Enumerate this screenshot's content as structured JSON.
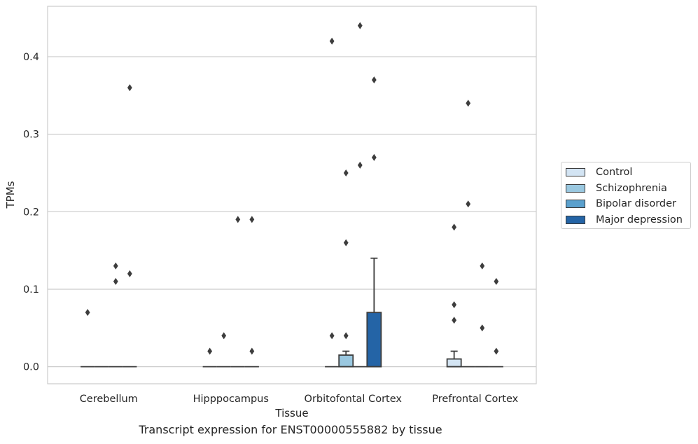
{
  "caption": "Transcript expression for ENST00000555882 by tissue",
  "chart_data": {
    "type": "box",
    "xlabel": "Tissue",
    "ylabel": "TPMs",
    "ylim": [
      -0.022,
      0.465
    ],
    "yticks": [
      0.0,
      0.1,
      0.2,
      0.3,
      0.4
    ],
    "ytick_labels": [
      "0.0",
      "0.1",
      "0.2",
      "0.3",
      "0.4"
    ],
    "grid": true,
    "legend_position": "right",
    "categories": [
      "Cerebellum",
      "Hipppocampus",
      "Orbitofontal Cortex",
      "Prefrontal Cortex"
    ],
    "series": [
      {
        "name": "Control",
        "color": "#d3e4f3",
        "boxes": [
          {
            "q1": 0,
            "median": 0,
            "q3": 0,
            "whislo": 0,
            "whishi": 0,
            "fliers": [
              0.07
            ]
          },
          {
            "q1": 0,
            "median": 0,
            "q3": 0,
            "whislo": 0,
            "whishi": 0,
            "fliers": [
              0.02
            ]
          },
          {
            "q1": 0,
            "median": 0,
            "q3": 0,
            "whislo": 0,
            "whishi": 0,
            "fliers": [
              0.42,
              0.04
            ]
          },
          {
            "q1": 0,
            "median": 0,
            "q3": 0.01,
            "whislo": 0,
            "whishi": 0.02,
            "fliers": [
              0.06,
              0.08,
              0.18
            ]
          }
        ]
      },
      {
        "name": "Schizophrenia",
        "color": "#9ac8e0",
        "boxes": [
          {
            "q1": 0,
            "median": 0,
            "q3": 0,
            "whislo": 0,
            "whishi": 0,
            "fliers": []
          },
          {
            "q1": 0,
            "median": 0,
            "q3": 0,
            "whislo": 0,
            "whishi": 0,
            "fliers": [
              0.04
            ]
          },
          {
            "q1": 0,
            "median": 0,
            "q3": 0.015,
            "whislo": 0,
            "whishi": 0.02,
            "fliers": [
              0.04,
              0.16,
              0.25
            ]
          },
          {
            "q1": 0,
            "median": 0,
            "q3": 0,
            "whislo": 0,
            "whishi": 0,
            "fliers": [
              0.21,
              0.34
            ]
          }
        ]
      },
      {
        "name": "Bipolar disorder",
        "color": "#5aa0cd",
        "boxes": [
          {
            "q1": 0,
            "median": 0,
            "q3": 0,
            "whislo": 0,
            "whishi": 0,
            "fliers": [
              0.11,
              0.13
            ]
          },
          {
            "q1": 0,
            "median": 0,
            "q3": 0,
            "whislo": 0,
            "whishi": 0,
            "fliers": [
              0.19
            ]
          },
          {
            "q1": 0,
            "median": 0,
            "q3": 0,
            "whislo": 0,
            "whishi": 0,
            "fliers": [
              0.26,
              0.44
            ]
          },
          {
            "q1": 0,
            "median": 0,
            "q3": 0,
            "whislo": 0,
            "whishi": 0,
            "fliers": [
              0.05,
              0.13
            ]
          }
        ]
      },
      {
        "name": "Major depression",
        "color": "#2464a6",
        "boxes": [
          {
            "q1": 0,
            "median": 0,
            "q3": 0,
            "whislo": 0,
            "whishi": 0,
            "fliers": [
              0.12,
              0.36
            ]
          },
          {
            "q1": 0,
            "median": 0,
            "q3": 0,
            "whislo": 0,
            "whishi": 0,
            "fliers": [
              0.02,
              0.19
            ]
          },
          {
            "q1": 0,
            "median": 0,
            "q3": 0.07,
            "whislo": 0,
            "whishi": 0.14,
            "fliers": [
              0.27,
              0.37
            ]
          },
          {
            "q1": 0,
            "median": 0,
            "q3": 0,
            "whislo": 0,
            "whishi": 0,
            "fliers": [
              0.02,
              0.11
            ]
          }
        ]
      }
    ]
  }
}
